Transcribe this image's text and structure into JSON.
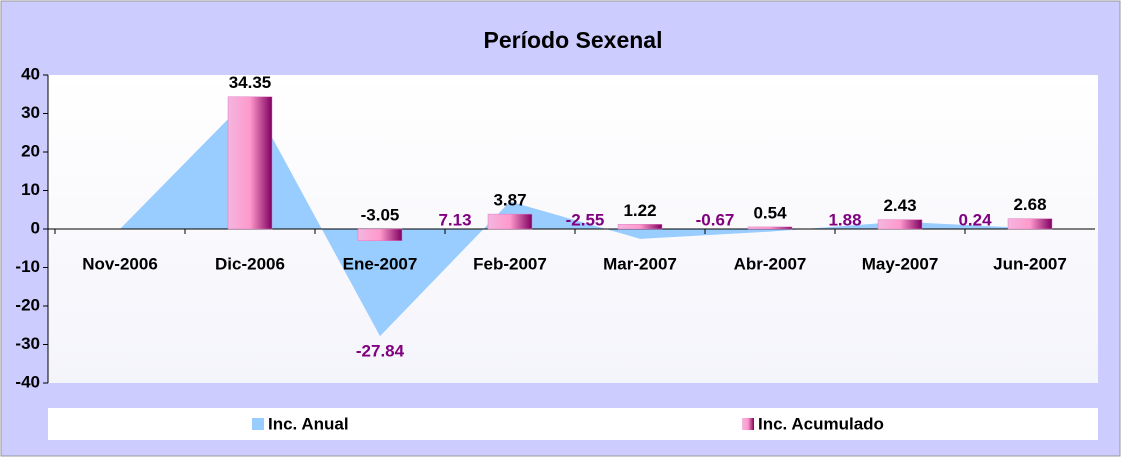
{
  "chart_data": {
    "type": "bar-area",
    "title": "Período Sexenal",
    "categories": [
      "Nov-2006",
      "Dic-2006",
      "Ene-2007",
      "Feb-2007",
      "Mar-2007",
      "Abr-2007",
      "May-2007",
      "Jun-2007"
    ],
    "series": [
      {
        "name": "Inc. Anual",
        "type": "area",
        "color": "#99ccff",
        "label_color": "#800080",
        "values": [
          0,
          34.35,
          -27.84,
          7.13,
          -2.55,
          -0.67,
          1.88,
          0.24
        ],
        "value_labels": [
          null,
          "34.35",
          "-27.84",
          "7.13",
          "-2.55",
          "-0.67",
          "1.88",
          "0.24"
        ]
      },
      {
        "name": "Inc. Acumulado",
        "type": "bar",
        "color": "#e07ac0",
        "label_color": "#000000",
        "values": [
          null,
          34.35,
          -3.05,
          3.87,
          1.22,
          0.54,
          2.43,
          2.68
        ]
      }
    ],
    "ylim": [
      -40,
      40
    ],
    "yticks": [
      -40,
      -30,
      -20,
      -10,
      0,
      10,
      20,
      30,
      40
    ],
    "legend": "bottom"
  }
}
